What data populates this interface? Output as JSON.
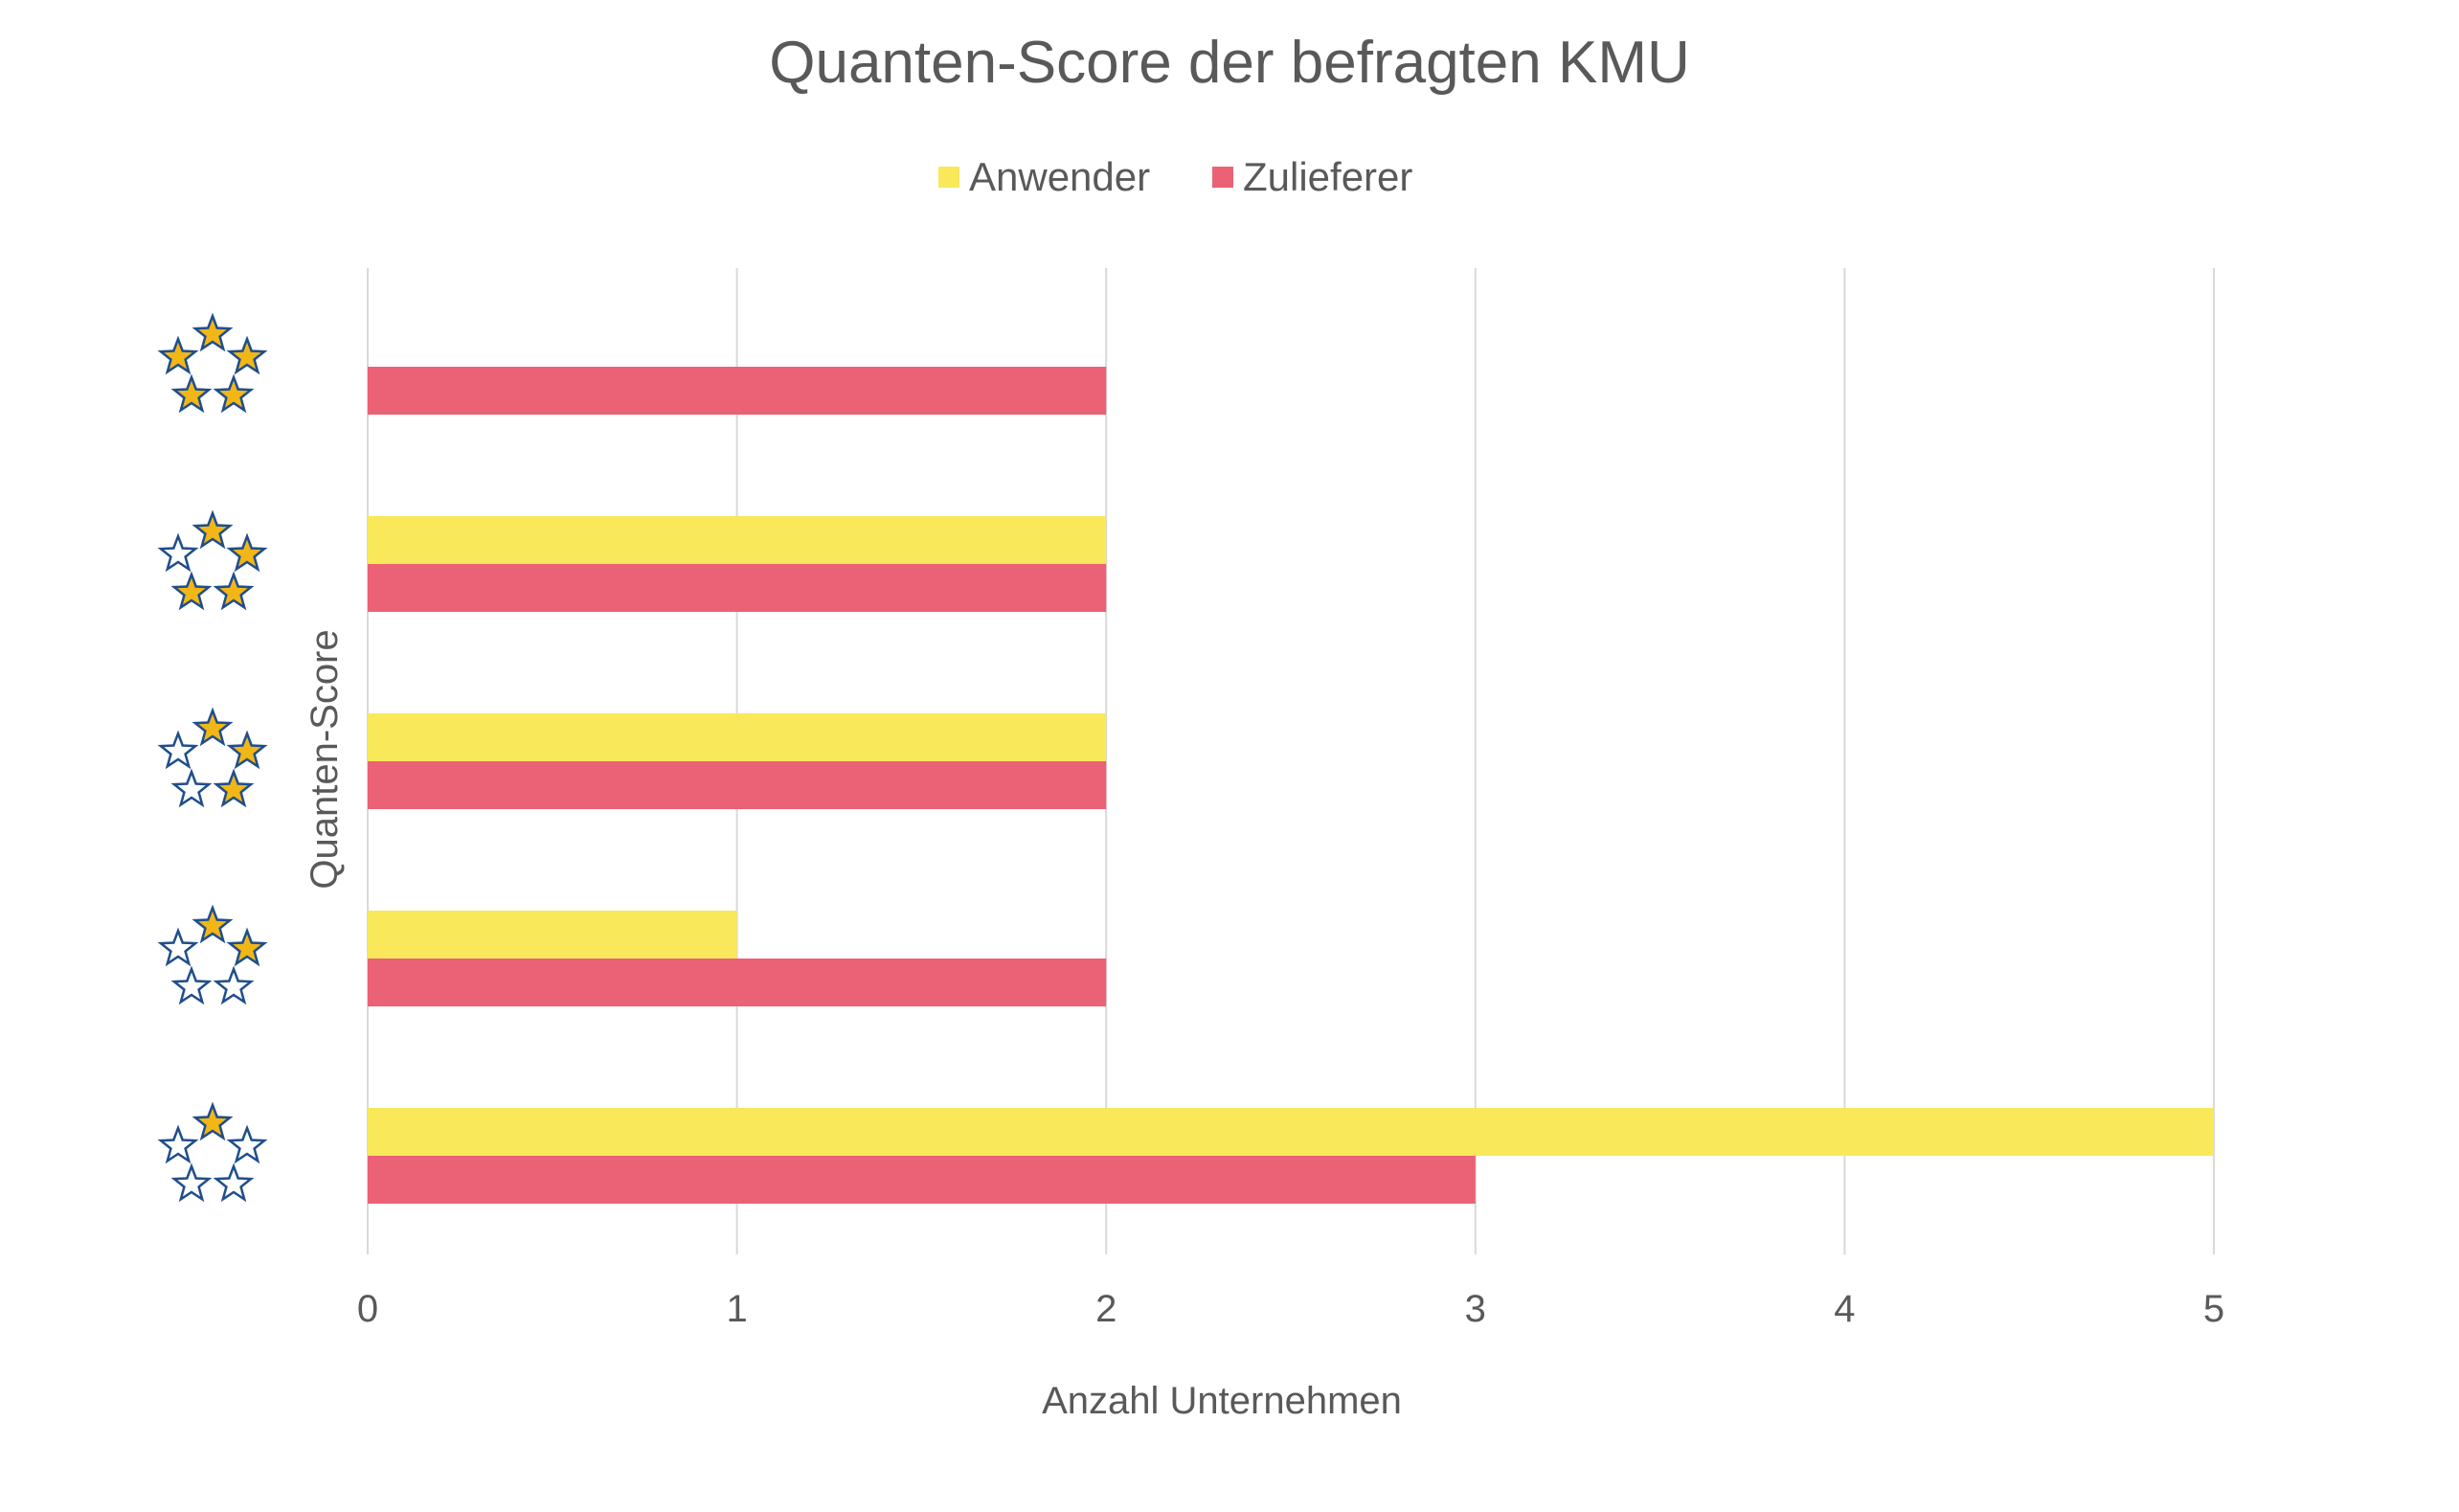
{
  "chart_data": {
    "type": "bar",
    "orientation": "horizontal",
    "title": "Quanten-Score der befragten KMU",
    "xlabel": "Anzahl Unternehmen",
    "ylabel": "Quanten-Score",
    "xlim": [
      0,
      5
    ],
    "x_ticks": [
      "0",
      "1",
      "2",
      "3",
      "4",
      "5"
    ],
    "grid": true,
    "legend_position": "top",
    "categories": [
      1,
      2,
      3,
      4,
      5
    ],
    "category_labels_note_icons": "star-rating-icon",
    "series": [
      {
        "name": "Anwender",
        "color": "#F8E85A",
        "values": [
          5,
          1,
          2,
          2,
          0
        ]
      },
      {
        "name": "Zulieferer",
        "color": "#EB6175",
        "values": [
          3,
          2,
          2,
          2,
          2
        ]
      }
    ],
    "star_colors": {
      "filled": "#F2B716",
      "empty": "#ffffff",
      "outline": "#1F4E8C"
    }
  }
}
